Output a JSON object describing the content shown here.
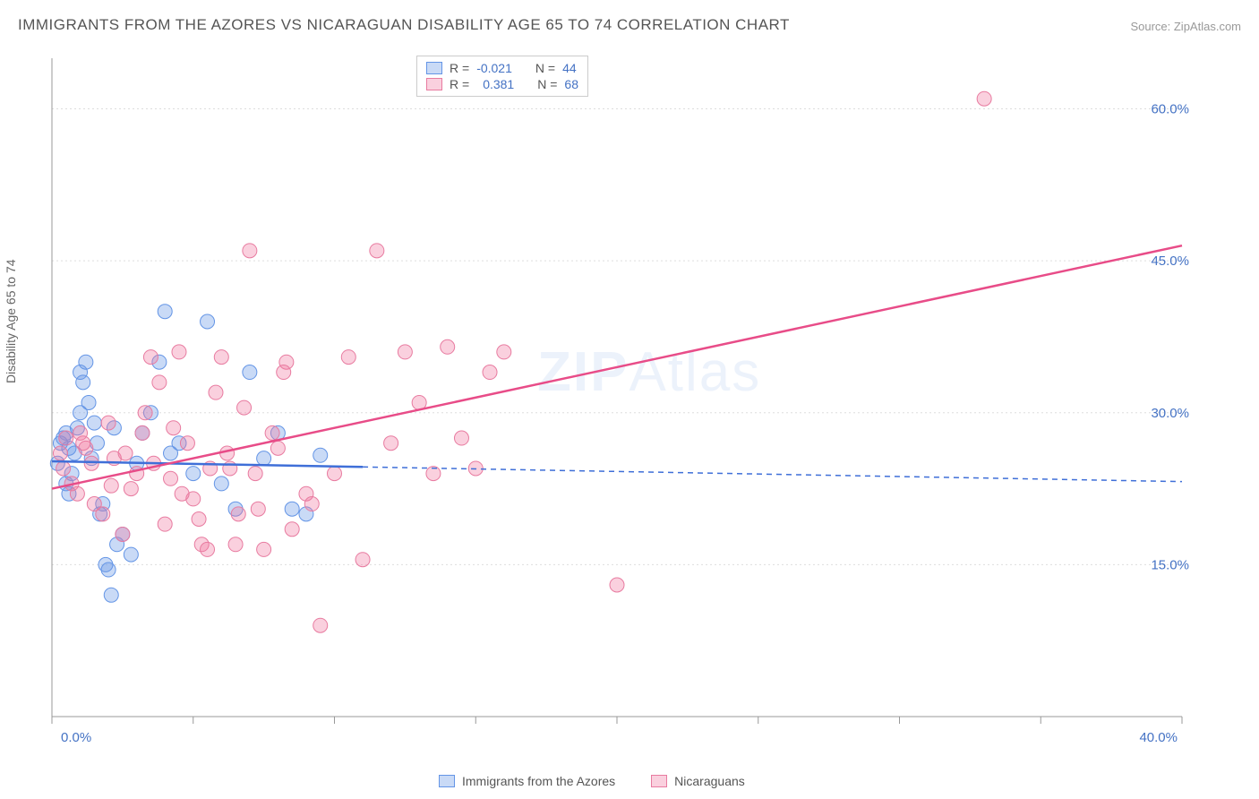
{
  "title": "IMMIGRANTS FROM THE AZORES VS NICARAGUAN DISABILITY AGE 65 TO 74 CORRELATION CHART",
  "source": "Source: ZipAtlas.com",
  "y_axis_label": "Disability Age 65 to 74",
  "watermark": "ZIPAtlas",
  "chart": {
    "type": "scatter",
    "background_color": "#ffffff",
    "grid_color": "#dddddd",
    "axis_color": "#999999",
    "tick_color": "#999999",
    "label_color": "#4472c4",
    "xlim": [
      0,
      40
    ],
    "ylim": [
      0,
      65
    ],
    "x_ticks": [
      0,
      5,
      10,
      15,
      20,
      25,
      30,
      35,
      40
    ],
    "x_tick_labels": {
      "0": "0.0%",
      "40": "40.0%"
    },
    "y_ticks": [
      15,
      30,
      45,
      60
    ],
    "y_tick_labels": {
      "15": "15.0%",
      "30": "30.0%",
      "45": "45.0%",
      "60": "60.0%"
    },
    "series": [
      {
        "name": "Immigrants from the Azores",
        "color_fill": "rgba(100,150,230,0.35)",
        "color_stroke": "#6495e6",
        "marker_radius": 8,
        "R": "-0.021",
        "N": "44",
        "trend": {
          "x1": 0,
          "y1": 25.2,
          "x2": 40,
          "y2": 23.2,
          "solid_until_x": 11,
          "color": "#3f6fd8",
          "width": 2.5
        },
        "points": [
          [
            0.2,
            25
          ],
          [
            0.3,
            27
          ],
          [
            0.5,
            28
          ],
          [
            0.5,
            23
          ],
          [
            0.6,
            22
          ],
          [
            0.7,
            24
          ],
          [
            0.8,
            26
          ],
          [
            0.9,
            28.5
          ],
          [
            1.0,
            30
          ],
          [
            1.0,
            34
          ],
          [
            1.1,
            33
          ],
          [
            1.2,
            35
          ],
          [
            1.3,
            31
          ],
          [
            1.5,
            29
          ],
          [
            1.6,
            27
          ],
          [
            1.7,
            20
          ],
          [
            1.8,
            21
          ],
          [
            1.9,
            15
          ],
          [
            2.0,
            14.5
          ],
          [
            2.1,
            12
          ],
          [
            2.3,
            17
          ],
          [
            2.5,
            18
          ],
          [
            2.8,
            16
          ],
          [
            3.0,
            25
          ],
          [
            3.2,
            28
          ],
          [
            3.5,
            30
          ],
          [
            3.8,
            35
          ],
          [
            4.0,
            40
          ],
          [
            4.2,
            26
          ],
          [
            4.5,
            27
          ],
          [
            5.0,
            24
          ],
          [
            5.5,
            39
          ],
          [
            6.0,
            23
          ],
          [
            6.5,
            20.5
          ],
          [
            7.0,
            34
          ],
          [
            7.5,
            25.5
          ],
          [
            8.0,
            28
          ],
          [
            8.5,
            20.5
          ],
          [
            9.0,
            20
          ],
          [
            9.5,
            25.8
          ],
          [
            0.4,
            27.5
          ],
          [
            0.6,
            26.5
          ],
          [
            1.4,
            25.5
          ],
          [
            2.2,
            28.5
          ]
        ]
      },
      {
        "name": "Nicaraguans",
        "color_fill": "rgba(240,120,160,0.35)",
        "color_stroke": "#e87ba0",
        "marker_radius": 8,
        "R": "0.381",
        "N": "68",
        "trend": {
          "x1": 0,
          "y1": 22.5,
          "x2": 40,
          "y2": 46.5,
          "solid_until_x": 40,
          "color": "#e84c88",
          "width": 2.5
        },
        "points": [
          [
            0.3,
            26
          ],
          [
            0.4,
            24.5
          ],
          [
            0.5,
            27.5
          ],
          [
            0.7,
            23
          ],
          [
            0.9,
            22
          ],
          [
            1.0,
            28
          ],
          [
            1.2,
            26.5
          ],
          [
            1.5,
            21
          ],
          [
            1.8,
            20
          ],
          [
            2.0,
            29
          ],
          [
            2.2,
            25.5
          ],
          [
            2.5,
            18
          ],
          [
            2.8,
            22.5
          ],
          [
            3.0,
            24
          ],
          [
            3.3,
            30
          ],
          [
            3.5,
            35.5
          ],
          [
            3.8,
            33
          ],
          [
            4.0,
            19
          ],
          [
            4.3,
            28.5
          ],
          [
            4.5,
            36
          ],
          [
            4.8,
            27
          ],
          [
            5.0,
            21.5
          ],
          [
            5.3,
            17
          ],
          [
            5.5,
            16.5
          ],
          [
            5.8,
            32
          ],
          [
            6.0,
            35.5
          ],
          [
            6.3,
            24.5
          ],
          [
            6.5,
            17
          ],
          [
            6.8,
            30.5
          ],
          [
            7.0,
            46
          ],
          [
            7.3,
            20.5
          ],
          [
            7.5,
            16.5
          ],
          [
            7.8,
            28
          ],
          [
            8.0,
            26.5
          ],
          [
            8.3,
            35
          ],
          [
            8.5,
            18.5
          ],
          [
            9.0,
            22
          ],
          [
            9.5,
            9
          ],
          [
            10.0,
            24
          ],
          [
            10.5,
            35.5
          ],
          [
            11.0,
            15.5
          ],
          [
            11.5,
            46
          ],
          [
            12.0,
            27
          ],
          [
            12.5,
            36
          ],
          [
            13.0,
            31
          ],
          [
            13.5,
            24
          ],
          [
            14.0,
            36.5
          ],
          [
            14.5,
            27.5
          ],
          [
            15.0,
            24.5
          ],
          [
            15.5,
            34
          ],
          [
            16.0,
            36
          ],
          [
            20.0,
            13
          ],
          [
            33.0,
            61
          ],
          [
            1.1,
            27
          ],
          [
            1.4,
            25
          ],
          [
            2.1,
            22.8
          ],
          [
            2.6,
            26
          ],
          [
            3.2,
            28
          ],
          [
            4.2,
            23.5
          ],
          [
            5.2,
            19.5
          ],
          [
            6.2,
            26
          ],
          [
            7.2,
            24
          ],
          [
            8.2,
            34
          ],
          [
            9.2,
            21
          ],
          [
            3.6,
            25
          ],
          [
            4.6,
            22
          ],
          [
            5.6,
            24.5
          ],
          [
            6.6,
            20
          ]
        ]
      }
    ]
  },
  "legend_bottom": [
    {
      "label": "Immigrants from the Azores",
      "fill": "rgba(100,150,230,0.35)",
      "stroke": "#6495e6"
    },
    {
      "label": "Nicaraguans",
      "fill": "rgba(240,120,160,0.35)",
      "stroke": "#e87ba0"
    }
  ]
}
